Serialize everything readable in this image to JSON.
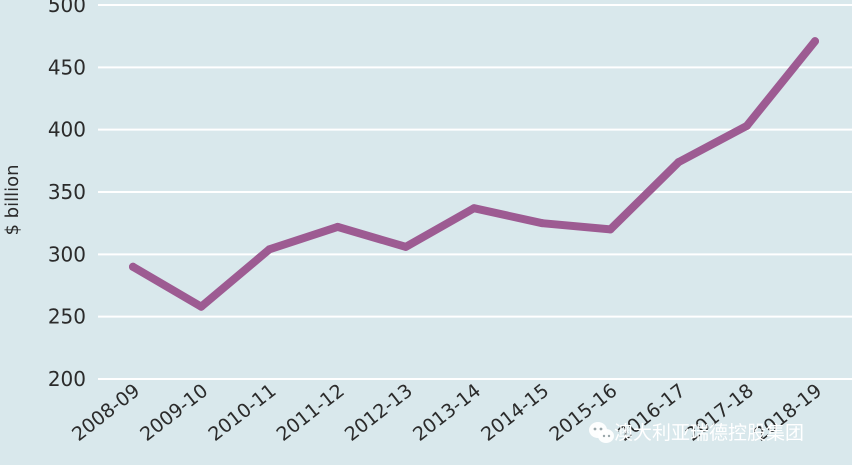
{
  "chart_data": {
    "type": "line",
    "ylabel": "$ billion",
    "ylim": [
      200,
      500
    ],
    "yticks": [
      200,
      250,
      300,
      350,
      400,
      450,
      500
    ],
    "grid": true,
    "categories": [
      "2008-09",
      "2009-10",
      "2010-11",
      "2011-12",
      "2012-13",
      "2013-14",
      "2014-15",
      "2015-16",
      "2016-17",
      "2017-18",
      "2018-19"
    ],
    "series": [
      {
        "values": [
          290,
          258,
          304,
          322,
          306,
          337,
          325,
          320,
          374,
          403,
          471
        ],
        "color": "#9d5b92"
      }
    ],
    "background": "#d9e8ec"
  },
  "watermark": {
    "icon": "wechat-icon",
    "text": "澳大利亚瑞德控股集团"
  }
}
